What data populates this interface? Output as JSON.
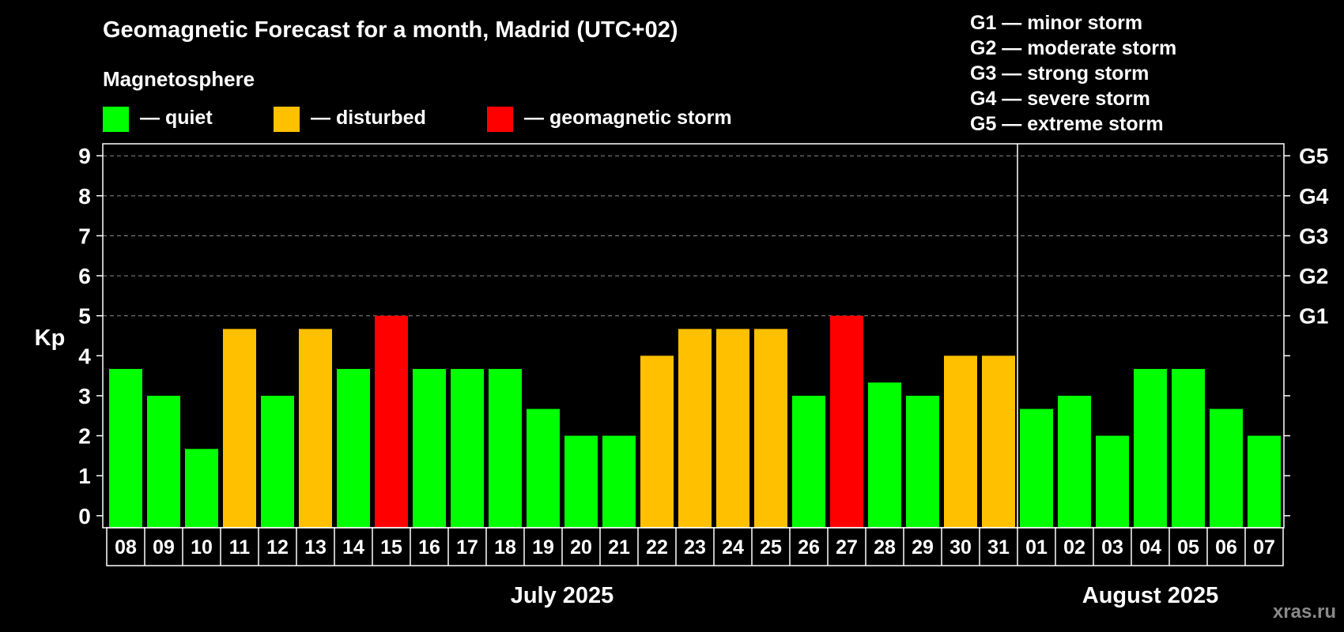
{
  "chart_data": {
    "type": "bar",
    "title": "Geomagnetic Forecast for a month, Madrid (UTC+02)",
    "legend_title": "Magnetosphere",
    "legend": [
      {
        "key": "quiet",
        "label": "— quiet",
        "color": "#00ff00"
      },
      {
        "key": "disturbed",
        "label": "— disturbed",
        "color": "#ffc000"
      },
      {
        "key": "storm",
        "label": "— geomagnetic storm",
        "color": "#ff0000"
      }
    ],
    "storm_scale": [
      "G1 — minor storm",
      "G2 — moderate storm",
      "G3 — strong storm",
      "G4 — severe storm",
      "G5 — extreme storm"
    ],
    "ylabel": "Kp",
    "ylim": [
      -0.3,
      9.3
    ],
    "yticks": [
      "0",
      "1",
      "2",
      "3",
      "4",
      "5",
      "6",
      "7",
      "8",
      "9"
    ],
    "right_ticks": [
      {
        "value": 5,
        "label": "G1"
      },
      {
        "value": 6,
        "label": "G2"
      },
      {
        "value": 7,
        "label": "G3"
      },
      {
        "value": 8,
        "label": "G4"
      },
      {
        "value": 9,
        "label": "G5"
      }
    ],
    "categories": [
      "08",
      "09",
      "10",
      "11",
      "12",
      "13",
      "14",
      "15",
      "16",
      "17",
      "18",
      "19",
      "20",
      "21",
      "22",
      "23",
      "24",
      "25",
      "26",
      "27",
      "28",
      "29",
      "30",
      "31",
      "01",
      "02",
      "03",
      "04",
      "05",
      "06",
      "07"
    ],
    "values": [
      3.67,
      3.0,
      1.67,
      4.67,
      3.0,
      4.67,
      3.67,
      5.0,
      3.67,
      3.67,
      3.67,
      2.67,
      2.0,
      2.0,
      4.0,
      4.67,
      4.67,
      4.67,
      3.0,
      5.0,
      3.33,
      3.0,
      4.0,
      4.0,
      2.67,
      3.0,
      2.0,
      3.67,
      3.67,
      2.67,
      2.0
    ],
    "levels": [
      "quiet",
      "quiet",
      "quiet",
      "disturbed",
      "quiet",
      "disturbed",
      "quiet",
      "storm",
      "quiet",
      "quiet",
      "quiet",
      "quiet",
      "quiet",
      "quiet",
      "disturbed",
      "disturbed",
      "disturbed",
      "disturbed",
      "quiet",
      "storm",
      "quiet",
      "quiet",
      "disturbed",
      "disturbed",
      "quiet",
      "quiet",
      "quiet",
      "quiet",
      "quiet",
      "quiet",
      "quiet"
    ],
    "months": [
      {
        "label": "July 2025",
        "count": 24
      },
      {
        "label": "August 2025",
        "count": 7
      }
    ],
    "watermark": "xras.ru"
  }
}
